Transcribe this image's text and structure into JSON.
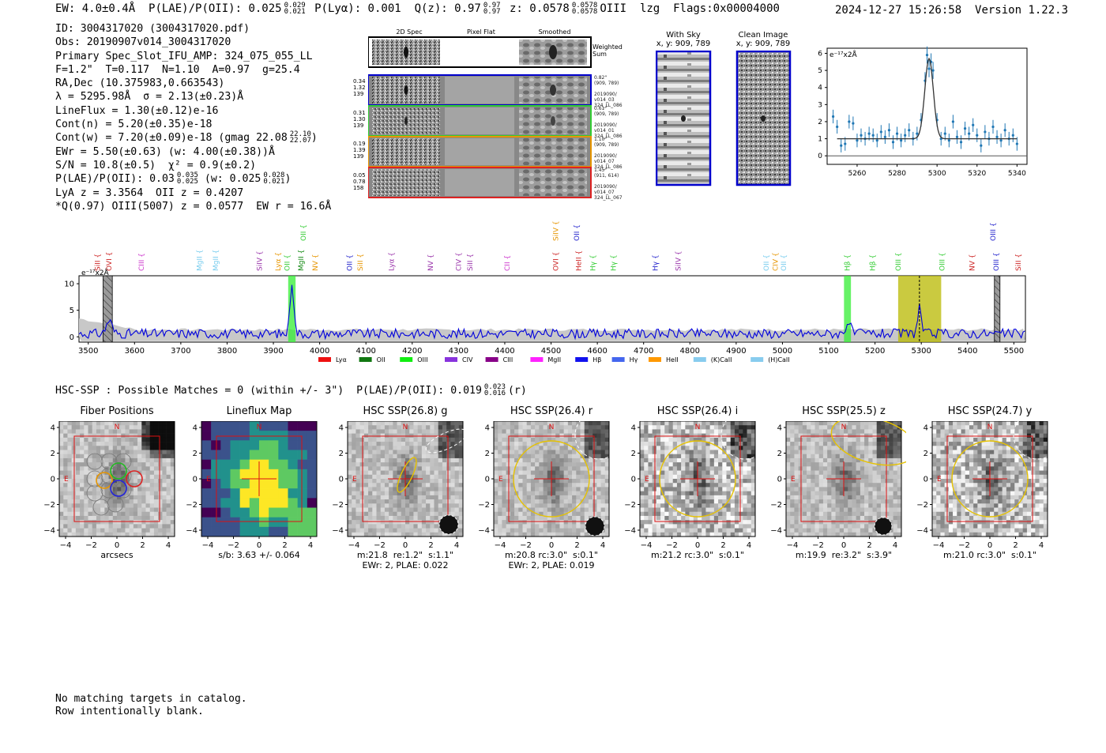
{
  "header": {
    "top_line": "EW: 4.0±0.4Å  P(LAE)/P(OII): 0.025 0.029/0.021  P(Lyα): 0.001  Q(z): 0.97 0.97/0.97  z: 0.0578 0.0578/0.0578 OIII  lzg  Flags:0x00004000",
    "ew": "EW: 4.0±0.4Å",
    "plae": "P(LAE)/P(OII): 0.025",
    "plae_hi": "0.029",
    "plae_lo": "0.021",
    "plya": "P(Lyα): 0.001",
    "qz": "Q(z): 0.97",
    "qz_hi": "0.97",
    "qz_lo": "0.97",
    "z": "z: 0.0578",
    "z_hi": "0.0578",
    "z_lo": "0.0578",
    "z_line": "OIII",
    "tag": "lzg",
    "flags": "Flags:0x00004000",
    "timestamp": "2024-12-27 15:26:58",
    "version": "Version 1.22.3"
  },
  "info": {
    "id": "ID: 3004317020 (3004317020.pdf)",
    "obs": "Obs: 20190907v014_3004317020",
    "primary": "Primary Spec_Slot_IFU_AMP: 324_075_055_LL",
    "fibers": "F=1.2\"  T=0.117  N=1.10  A=0.97  g=25.4",
    "radec": "RA,Dec (10.375983,0.663543)",
    "lambda": "λ = 5295.98Å  σ = 2.13(±0.23)Å",
    "lineflux": "LineFlux = 1.30(±0.12)e-16",
    "cont_n": "Cont(n) = 5.20(±0.35)e-18",
    "cont_w": "Cont(w) = 7.20(±0.09)e-18 (gmag 22.08",
    "cont_w_hi": "22.10",
    "cont_w_lo": "22.07",
    "cont_w_close": ")",
    "ewr": "EWr = 5.50(±0.63) (w: 4.00(±0.38))Å",
    "sn": "S/N = 10.8(±0.5)  χ² = 0.9(±0.2)",
    "plae_line": "P(LAE)/P(OII): 0.03",
    "plae_line_hi": "0.035",
    "plae_line_lo": "0.025",
    "plae_line_w": " (w: 0.025",
    "plae_line_w_hi": "0.028",
    "plae_line_w_lo": "0.021",
    "plae_line_close": ")",
    "lya": "LyA z = 3.3564  OII z = 0.4207",
    "q": "*Q(0.97) OIII(5007) z = 0.0577  EW r = 16.6Å"
  },
  "spec2d": {
    "col_titles": [
      "2D Spec",
      "Pixel Flat",
      "Smoothed"
    ],
    "weighted_label": "Weighted\nSum",
    "rows": [
      {
        "meta": "0.34\n1.32\n139",
        "side": "0.82\"\n(909, 789)\n\n2019090/\nv014_03\n324_LL_086",
        "color": "#0000cc"
      },
      {
        "meta": "0.31\n1.30\n139",
        "side": "0.61\"\n(909, 789)\n\n2019090/\nv014_01\n324_LL_086",
        "color": "#33cc33"
      },
      {
        "meta": "0.19\n1.39\n139",
        "side": "1.10\"\n(909, 789)\n\n2019090/\nv014_07\n324_LL_086",
        "color": "#e69500"
      },
      {
        "meta": "0.05\n0.78\n158",
        "side": "1.45\"\n(911, 614)\n\n2019090/\nv014_07\n324_LL_067",
        "color": "#dd2222"
      }
    ]
  },
  "sky": {
    "with_sky_title": "With Sky",
    "with_sky_xy": "x, y: 909, 789",
    "clean_title": "Clean Image",
    "clean_xy": "x, y: 909, 789"
  },
  "zoom_unit": "e⁻¹⁷x2Å",
  "full_unit": "e⁻¹⁷x2Å",
  "chart_data": [
    {
      "type": "scatter",
      "title": "",
      "ylabel": "e⁻¹⁷x2Å",
      "xlim": [
        5245,
        5345
      ],
      "ylim": [
        -0.5,
        6.3
      ],
      "xticks": [
        5260,
        5280,
        5300,
        5320,
        5340
      ],
      "yticks": [
        0,
        1,
        2,
        3,
        4,
        5,
        6
      ],
      "points": [
        {
          "x": 5248,
          "y": 2.3,
          "e": 0.4
        },
        {
          "x": 5250,
          "y": 1.7,
          "e": 0.4
        },
        {
          "x": 5252,
          "y": 0.6,
          "e": 0.4
        },
        {
          "x": 5254,
          "y": 0.7,
          "e": 0.4
        },
        {
          "x": 5256,
          "y": 2.0,
          "e": 0.4
        },
        {
          "x": 5258,
          "y": 1.9,
          "e": 0.4
        },
        {
          "x": 5260,
          "y": 0.9,
          "e": 0.4
        },
        {
          "x": 5262,
          "y": 1.2,
          "e": 0.4
        },
        {
          "x": 5264,
          "y": 1.0,
          "e": 0.4
        },
        {
          "x": 5266,
          "y": 1.3,
          "e": 0.4
        },
        {
          "x": 5268,
          "y": 1.2,
          "e": 0.4
        },
        {
          "x": 5270,
          "y": 0.9,
          "e": 0.4
        },
        {
          "x": 5272,
          "y": 1.4,
          "e": 0.4
        },
        {
          "x": 5274,
          "y": 1.1,
          "e": 0.4
        },
        {
          "x": 5276,
          "y": 1.5,
          "e": 0.4
        },
        {
          "x": 5278,
          "y": 0.8,
          "e": 0.4
        },
        {
          "x": 5280,
          "y": 1.3,
          "e": 0.4
        },
        {
          "x": 5282,
          "y": 0.9,
          "e": 0.4
        },
        {
          "x": 5284,
          "y": 1.2,
          "e": 0.4
        },
        {
          "x": 5286,
          "y": 1.5,
          "e": 0.4
        },
        {
          "x": 5288,
          "y": 1.0,
          "e": 0.4
        },
        {
          "x": 5290,
          "y": 1.3,
          "e": 0.4
        },
        {
          "x": 5292,
          "y": 2.1,
          "e": 0.4
        },
        {
          "x": 5294,
          "y": 4.4,
          "e": 0.5
        },
        {
          "x": 5295,
          "y": 5.9,
          "e": 0.5
        },
        {
          "x": 5296,
          "y": 5.1,
          "e": 0.5
        },
        {
          "x": 5297,
          "y": 5.5,
          "e": 0.5
        },
        {
          "x": 5298,
          "y": 5.0,
          "e": 0.5
        },
        {
          "x": 5300,
          "y": 2.1,
          "e": 0.4
        },
        {
          "x": 5302,
          "y": 1.0,
          "e": 0.4
        },
        {
          "x": 5304,
          "y": 1.3,
          "e": 0.4
        },
        {
          "x": 5306,
          "y": 0.9,
          "e": 0.4
        },
        {
          "x": 5308,
          "y": 2.0,
          "e": 0.4
        },
        {
          "x": 5310,
          "y": 1.1,
          "e": 0.4
        },
        {
          "x": 5312,
          "y": 0.8,
          "e": 0.4
        },
        {
          "x": 5314,
          "y": 1.6,
          "e": 0.4
        },
        {
          "x": 5316,
          "y": 1.3,
          "e": 0.4
        },
        {
          "x": 5318,
          "y": 1.8,
          "e": 0.4
        },
        {
          "x": 5320,
          "y": 1.2,
          "e": 0.4
        },
        {
          "x": 5322,
          "y": 0.6,
          "e": 0.4
        },
        {
          "x": 5324,
          "y": 1.4,
          "e": 0.4
        },
        {
          "x": 5326,
          "y": 1.0,
          "e": 0.4
        },
        {
          "x": 5328,
          "y": 1.7,
          "e": 0.4
        },
        {
          "x": 5330,
          "y": 1.1,
          "e": 0.4
        },
        {
          "x": 5332,
          "y": 0.9,
          "e": 0.4
        },
        {
          "x": 5334,
          "y": 1.5,
          "e": 0.4
        },
        {
          "x": 5336,
          "y": 1.0,
          "e": 0.4
        },
        {
          "x": 5338,
          "y": 1.2,
          "e": 0.4
        },
        {
          "x": 5340,
          "y": 0.7,
          "e": 0.4
        }
      ],
      "fit": {
        "continuum": 1.0,
        "center": 5296,
        "sigma": 2.13,
        "amplitude": 4.7
      }
    },
    {
      "type": "line",
      "title": "",
      "ylabel": "e⁻¹⁷x2Å",
      "xlim": [
        3480,
        5525
      ],
      "ylim": [
        -1,
        11.5
      ],
      "xticks": [
        3500,
        3600,
        3700,
        3800,
        3900,
        4000,
        4100,
        4200,
        4300,
        4400,
        4500,
        4600,
        4700,
        4800,
        4900,
        5000,
        5100,
        5200,
        5300,
        5400,
        5500
      ],
      "yticks": [
        0,
        5,
        10
      ],
      "peaks": [
        {
          "x": 3940,
          "height": 10.0,
          "width": 4
        },
        {
          "x": 5296,
          "height": 5.2,
          "width": 4
        },
        {
          "x": 5142,
          "height": 2.3,
          "width": 5
        },
        {
          "x": 3545,
          "height": 2.5,
          "width": 6
        }
      ],
      "bands": [
        {
          "x0": 3532,
          "x1": 3552,
          "color": "#808080",
          "hatch": true
        },
        {
          "x0": 3932,
          "x1": 3948,
          "color": "#33ee33",
          "hatch": false
        },
        {
          "x0": 5133,
          "x1": 5148,
          "color": "#33ee33",
          "hatch": false
        },
        {
          "x0": 5250,
          "x1": 5343,
          "color": "#b8b800",
          "hatch": false
        },
        {
          "x0": 5458,
          "x1": 5470,
          "color": "#808080",
          "hatch": true
        }
      ],
      "line_marker": 5296,
      "line_labels": [
        {
          "x": 3520,
          "label": "SiII",
          "color": "#cc2222",
          "row": 0
        },
        {
          "x": 3545,
          "label": "OVI",
          "color": "#cc2222",
          "row": 0
        },
        {
          "x": 3615,
          "label": "CIII",
          "color": "#cc33cc",
          "row": 0
        },
        {
          "x": 3740,
          "label": "MgII",
          "color": "#77ccee",
          "row": 0
        },
        {
          "x": 3775,
          "label": "MgII",
          "color": "#77ccee",
          "row": 0
        },
        {
          "x": 3870,
          "label": "SiIV",
          "color": "#9933aa",
          "row": 0
        },
        {
          "x": 3910,
          "label": "Lyα",
          "color": "#e69500",
          "row": 0
        },
        {
          "x": 3930,
          "label": "OII",
          "color": "#33cc33",
          "row": 0
        },
        {
          "x": 3960,
          "label": "MgII",
          "color": "#118811",
          "row": 0
        },
        {
          "x": 3990,
          "label": "NV",
          "color": "#e69500",
          "row": 0
        },
        {
          "x": 4065,
          "label": "OII",
          "color": "#2222cc",
          "row": 0
        },
        {
          "x": 4088,
          "label": "SiII",
          "color": "#e69500",
          "row": 0
        },
        {
          "x": 4155,
          "label": "Lyα",
          "color": "#9933aa",
          "row": 0
        },
        {
          "x": 4240,
          "label": "NV",
          "color": "#9933aa",
          "row": 0
        },
        {
          "x": 4300,
          "label": "CIV",
          "color": "#9933aa",
          "row": 0
        },
        {
          "x": 4325,
          "label": "SiII",
          "color": "#9933aa",
          "row": 0
        },
        {
          "x": 4405,
          "label": "CII",
          "color": "#cc33cc",
          "row": 0
        },
        {
          "x": 4510,
          "label": "OVI",
          "color": "#cc2222",
          "row": 0
        },
        {
          "x": 4560,
          "label": "HeII",
          "color": "#cc2222",
          "row": 0
        },
        {
          "x": 4590,
          "label": "Hγ",
          "color": "#33cc33",
          "row": 0
        },
        {
          "x": 4635,
          "label": "Hγ",
          "color": "#33cc33",
          "row": 0
        },
        {
          "x": 4725,
          "label": "Hγ",
          "color": "#2222cc",
          "row": 0
        },
        {
          "x": 4775,
          "label": "SiIV",
          "color": "#9933aa",
          "row": 0
        },
        {
          "x": 4965,
          "label": "OII",
          "color": "#77ccee",
          "row": 0
        },
        {
          "x": 4985,
          "label": "CIV",
          "color": "#e69500",
          "row": 0
        },
        {
          "x": 5003,
          "label": "OII",
          "color": "#77ccee",
          "row": 0
        },
        {
          "x": 5140,
          "label": "Hβ",
          "color": "#33cc33",
          "row": 0
        },
        {
          "x": 5195,
          "label": "Hβ",
          "color": "#33cc33",
          "row": 0
        },
        {
          "x": 5250,
          "label": "OIII",
          "color": "#33cc33",
          "row": 0
        },
        {
          "x": 5345,
          "label": "OIII",
          "color": "#33cc33",
          "row": 0
        },
        {
          "x": 5410,
          "label": "NV",
          "color": "#cc2222",
          "row": 0
        },
        {
          "x": 5462,
          "label": "OIII",
          "color": "#2222cc",
          "row": 0
        },
        {
          "x": 5510,
          "label": "SiII",
          "color": "#cc2222",
          "row": 0
        },
        {
          "x": 3965,
          "label": "OII",
          "color": "#33cc33",
          "row": 1
        },
        {
          "x": 4510,
          "label": "SiIV",
          "color": "#e69500",
          "row": 1
        },
        {
          "x": 4555,
          "label": "OII",
          "color": "#2222cc",
          "row": 1
        },
        {
          "x": 5455,
          "label": "OIII",
          "color": "#2222cc",
          "row": 1
        }
      ],
      "legend": [
        {
          "label": "Lyα",
          "color": "#ee1111"
        },
        {
          "label": "OII",
          "color": "#117711"
        },
        {
          "label": "OIII",
          "color": "#11ee11"
        },
        {
          "label": "CIV",
          "color": "#8833dd"
        },
        {
          "label": "CIII",
          "color": "#880088"
        },
        {
          "label": "MgII",
          "color": "#ff22ff"
        },
        {
          "label": "Hβ",
          "color": "#1111ee"
        },
        {
          "label": "Hγ",
          "color": "#4466ee"
        },
        {
          "label": "HeII",
          "color": "#ff9900"
        },
        {
          "label": "(K)CaII",
          "color": "#88ccee"
        },
        {
          "label": "(H)CaII",
          "color": "#88ccee"
        }
      ]
    }
  ],
  "hsc_header": "HSC-SSP : Possible Matches = 0 (within +/- 3\")  P(LAE)/P(OII): 0.019",
  "hsc_header_hi": "0.023",
  "hsc_header_lo": "0.016",
  "hsc_header_band": "(r)",
  "cutouts": [
    {
      "title": "Fiber Positions",
      "caption": "arcsecs",
      "style": "fiber"
    },
    {
      "title": "Lineflux Map",
      "caption": "s/b: 3.63 +/- 0.064",
      "style": "flux"
    },
    {
      "title": "HSC SSP(26.8) g",
      "caption": "m:21.8  re:1.2\"  s:1.1\"\nEWr: 2, PLAE: 0.022",
      "style": "g"
    },
    {
      "title": "HSC SSP(26.4) r",
      "caption": "m:20.8 rc:3.0\"  s:0.1\"\nEWr: 2, PLAE: 0.019",
      "style": "r"
    },
    {
      "title": "HSC SSP(26.4) i",
      "caption": "m:21.2 rc:3.0\"  s:0.1\"",
      "style": "i"
    },
    {
      "title": "HSC SSP(25.5) z",
      "caption": "m:19.9  re:3.2\"  s:3.9\"",
      "style": "z"
    },
    {
      "title": "HSC SSP(24.7) y",
      "caption": "m:21.0 rc:3.0\"  s:0.1\"",
      "style": "y"
    }
  ],
  "cutout_axes": {
    "ticks": [
      "−4",
      "−2",
      "0",
      "2",
      "4"
    ],
    "north": "N",
    "east": "E"
  },
  "footer": {
    "line1": "No matching targets in catalog.",
    "line2": "Row intentionally blank."
  }
}
